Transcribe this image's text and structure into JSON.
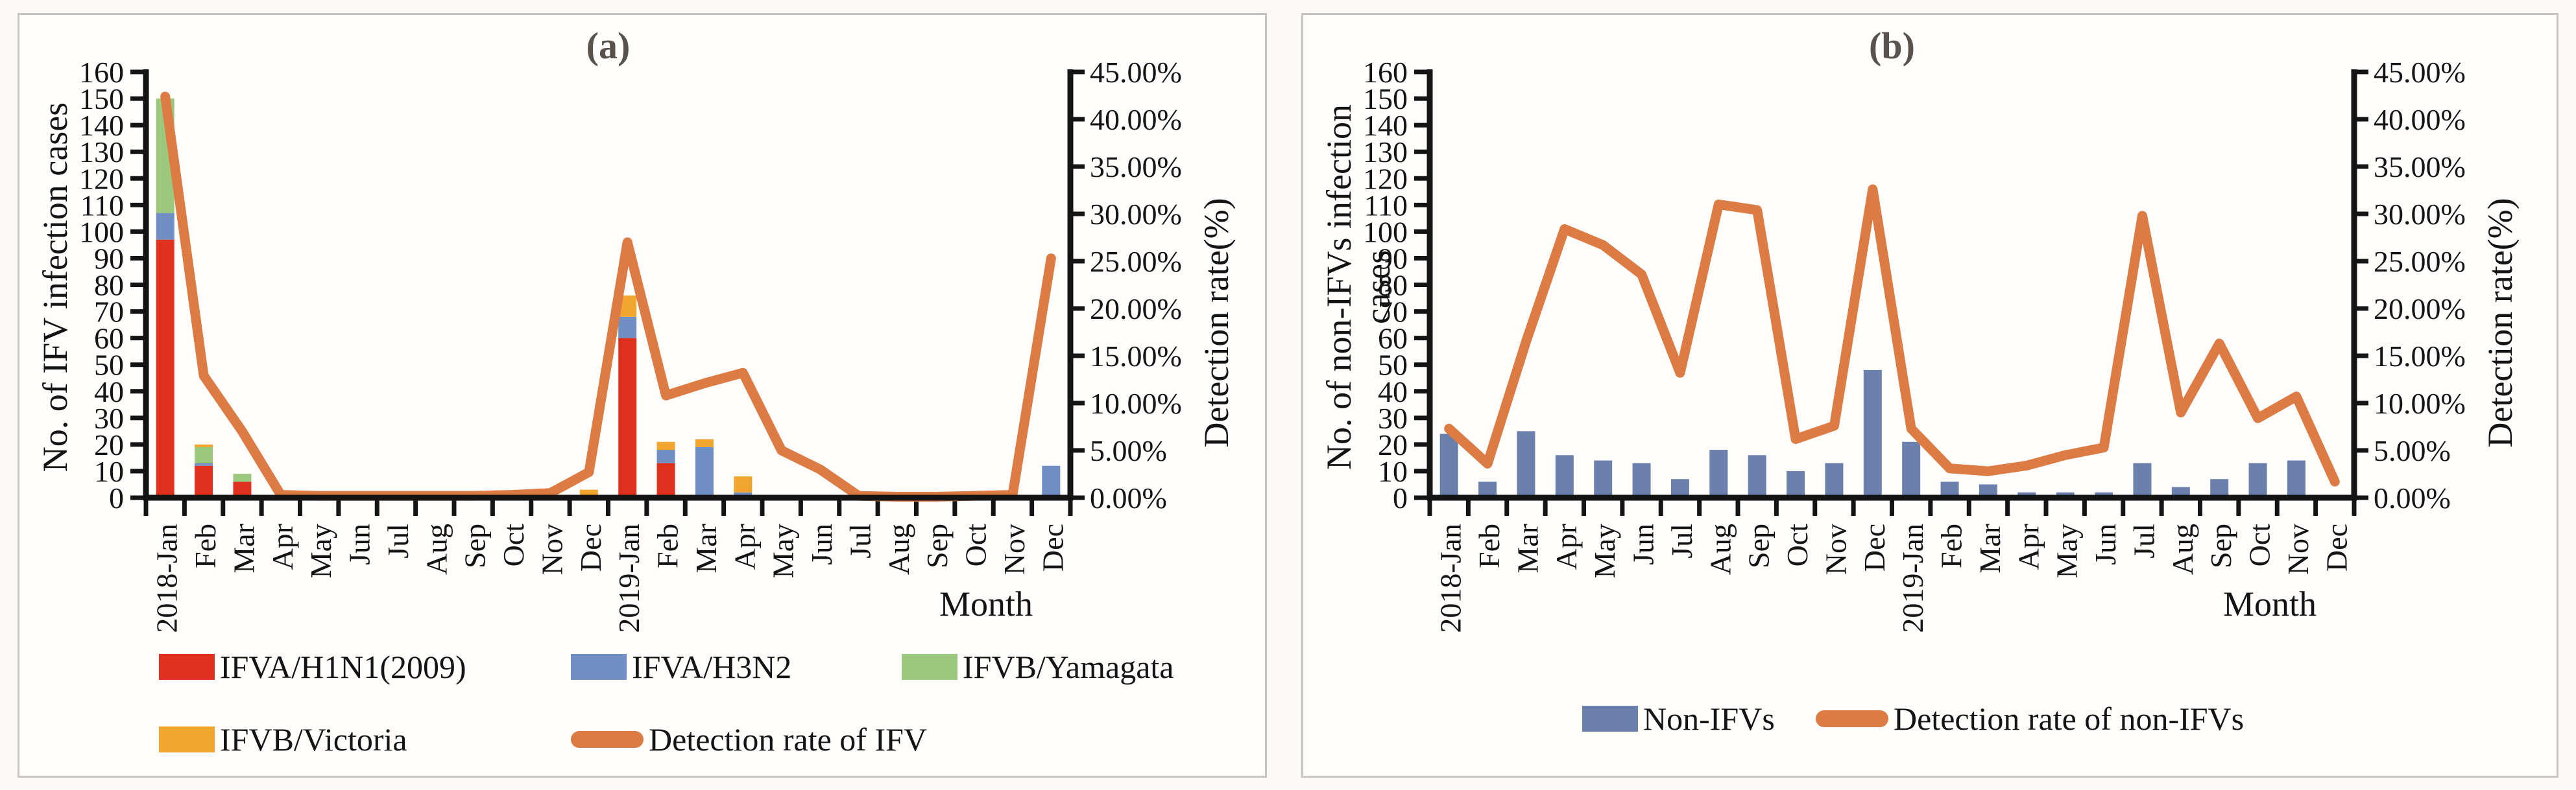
{
  "page": {
    "background": "#fbfaf8",
    "panel_border": "#c9c6c2",
    "axis_color": "#141414",
    "title_color": "#5a524c"
  },
  "chart_data": [
    {
      "id": "a",
      "type": "bar",
      "subtype": "stacked-bar-with-line",
      "title": "(a)",
      "ylabel_left": "No. of IFV infection cases",
      "ylabel_right": "Detection rate(%)",
      "xlabel": "Month",
      "grid": false,
      "categories": [
        "2018-Jan",
        "Feb",
        "Mar",
        "Apr",
        "May",
        "Jun",
        "Jul",
        "Aug",
        "Sep",
        "Oct",
        "Nov",
        "Dec",
        "2019-Jan",
        "Feb",
        "Mar",
        "Apr",
        "May",
        "Jun",
        "Jul",
        "Aug",
        "Sep",
        "Oct",
        "Nov",
        "Dec"
      ],
      "y_left": {
        "min": 0,
        "max": 160,
        "step": 10,
        "tick_labels": [
          "0",
          "10",
          "20",
          "30",
          "40",
          "50",
          "60",
          "70",
          "80",
          "90",
          "100",
          "110",
          "120",
          "130",
          "140",
          "150",
          "160"
        ]
      },
      "y_right": {
        "min": 0,
        "max": 45,
        "step": 5,
        "tick_labels": [
          "0.00%",
          "5.00%",
          "10.00%",
          "15.00%",
          "20.00%",
          "25.00%",
          "30.00%",
          "35.00%",
          "40.00%",
          "45.00%"
        ]
      },
      "stacked": true,
      "bar_series": [
        {
          "name": "IFVA/H1N1(2009)",
          "color": "#e0301e",
          "values": [
            97,
            12,
            6,
            0,
            0,
            0,
            0,
            0,
            0,
            0,
            0,
            0,
            60,
            13,
            0,
            0,
            0,
            0,
            0,
            0,
            0,
            0,
            0,
            0
          ]
        },
        {
          "name": "IFVA/H3N2",
          "color": "#6f8fc5",
          "values": [
            10,
            1,
            0,
            0,
            0,
            0,
            0,
            0,
            0,
            0,
            0,
            0,
            8,
            5,
            19,
            2,
            0,
            0,
            0,
            0,
            0,
            0,
            0,
            12
          ]
        },
        {
          "name": "IFVB/Yamagata",
          "color": "#9cc87d",
          "values": [
            43,
            6,
            3,
            0,
            0,
            0,
            0,
            0,
            0,
            0,
            0,
            0,
            0,
            0,
            0,
            0,
            1,
            0,
            0,
            0,
            0,
            0,
            0,
            0
          ]
        },
        {
          "name": "IFVB/Victoria",
          "color": "#f2a62f",
          "values": [
            0,
            1,
            0,
            0,
            0,
            0,
            0,
            0,
            0,
            0,
            0,
            3,
            8,
            3,
            3,
            6,
            0,
            0,
            0,
            0,
            0,
            0,
            0,
            0
          ]
        }
      ],
      "line_series": {
        "name": "Detection rate of IFV",
        "color": "#dd7b45",
        "values": [
          42.4,
          12.9,
          7.0,
          0.3,
          0.2,
          0.2,
          0.2,
          0.2,
          0.2,
          0.3,
          0.5,
          2.7,
          27.0,
          10.8,
          12.1,
          13.2,
          5.0,
          3.0,
          0.2,
          0.1,
          0.1,
          0.2,
          0.3,
          25.3
        ]
      },
      "legend_rows": [
        [
          "IFVA/H1N1(2009)",
          "IFVA/H3N2",
          "IFVB/Yamagata"
        ],
        [
          "IFVB/Victoria",
          "Detection rate of IFV"
        ]
      ]
    },
    {
      "id": "b",
      "type": "bar",
      "subtype": "bar-with-line",
      "title": "(b)",
      "ylabel_left": "No. of non-IFVs infection cases",
      "ylabel_right": "Detection rate(%)",
      "xlabel": "Month",
      "grid": false,
      "categories": [
        "2018-Jan",
        "Feb",
        "Mar",
        "Apr",
        "May",
        "Jun",
        "Jul",
        "Aug",
        "Sep",
        "Oct",
        "Nov",
        "Dec",
        "2019-Jan",
        "Feb",
        "Mar",
        "Apr",
        "May",
        "Jun",
        "Jul",
        "Aug",
        "Sep",
        "Oct",
        "Nov",
        "Dec"
      ],
      "y_left": {
        "min": 0,
        "max": 160,
        "step": 10,
        "tick_labels": [
          "0",
          "10",
          "20",
          "30",
          "40",
          "50",
          "60",
          "70",
          "80",
          "90",
          "100",
          "110",
          "120",
          "130",
          "140",
          "150",
          "160"
        ]
      },
      "y_right": {
        "min": 0,
        "max": 45,
        "step": 5,
        "tick_labels": [
          "0.00%",
          "5.00%",
          "10.00%",
          "15.00%",
          "20.00%",
          "25.00%",
          "30.00%",
          "35.00%",
          "40.00%",
          "45.00%"
        ]
      },
      "stacked": false,
      "bar_series": [
        {
          "name": "Non-IFVs",
          "color": "#6b80ad",
          "values": [
            24,
            6,
            25,
            16,
            14,
            13,
            7,
            18,
            16,
            10,
            13,
            48,
            21,
            6,
            5,
            2,
            2,
            2,
            13,
            4,
            7,
            13,
            14,
            1
          ]
        }
      ],
      "line_series": {
        "name": "Detection rate of non-IFVs",
        "color": "#dd7b45",
        "values": [
          7.3,
          3.6,
          16.5,
          28.4,
          26.7,
          23.6,
          13.2,
          31.0,
          30.4,
          6.2,
          7.6,
          32.6,
          7.3,
          3.1,
          2.8,
          3.4,
          4.5,
          5.3,
          29.8,
          9.0,
          16.3,
          8.4,
          10.7,
          1.7
        ]
      },
      "legend_rows": [
        [
          "Non-IFVs",
          "Detection rate of non-IFVs"
        ]
      ]
    }
  ]
}
